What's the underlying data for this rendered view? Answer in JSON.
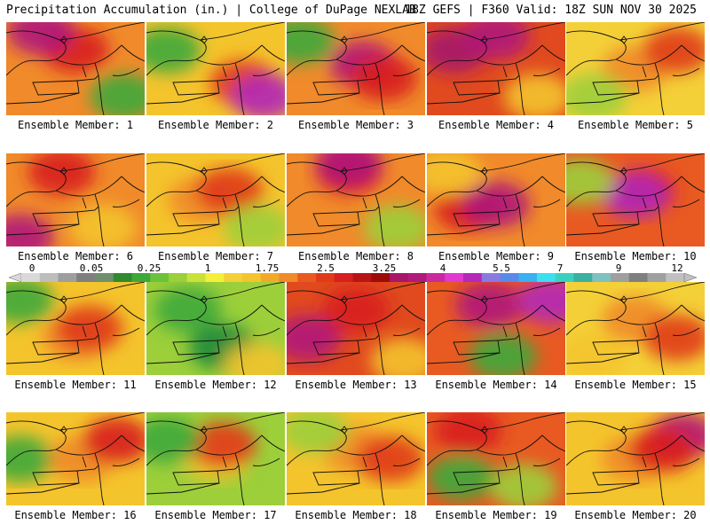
{
  "header": {
    "title": "Precipitation Accumulation (in.) | College of DuPage NEXLAB",
    "run_info": "18Z GEFS | F360 Valid: 18Z SUN NOV 30 2025"
  },
  "panels": [
    {
      "label": "Ensemble Member: 1",
      "base": "#f08a2a",
      "blobs": [
        [
          "#d81e1e",
          0.5,
          0.3
        ],
        [
          "#3ea83a",
          0.85,
          0.8
        ],
        [
          "#b01a7a",
          0.25,
          0.1
        ]
      ]
    },
    {
      "label": "Ensemble Member: 2",
      "base": "#f4c42c",
      "blobs": [
        [
          "#3ea83a",
          0.15,
          0.3
        ],
        [
          "#e03a1a",
          0.7,
          0.65
        ],
        [
          "#b32ab8",
          0.85,
          0.8
        ]
      ]
    },
    {
      "label": "Ensemble Member: 3",
      "base": "#f08a2a",
      "blobs": [
        [
          "#3ea83a",
          0.1,
          0.2
        ],
        [
          "#b01a7a",
          0.55,
          0.45
        ],
        [
          "#d81e1e",
          0.7,
          0.6
        ]
      ]
    },
    {
      "label": "Ensemble Member: 4",
      "base": "#e04a1e",
      "blobs": [
        [
          "#a6166a",
          0.2,
          0.3
        ],
        [
          "#b01a7a",
          0.5,
          0.15
        ],
        [
          "#f4c42c",
          0.8,
          0.8
        ]
      ]
    },
    {
      "label": "Ensemble Member: 5",
      "base": "#f4d038",
      "blobs": [
        [
          "#f08a2a",
          0.5,
          0.5
        ],
        [
          "#e03a1a",
          0.8,
          0.3
        ],
        [
          "#9ccf3a",
          0.2,
          0.8
        ]
      ]
    },
    {
      "label": "Ensemble Member: 6",
      "base": "#f08a2a",
      "blobs": [
        [
          "#d81e1e",
          0.4,
          0.2
        ],
        [
          "#b01a7a",
          0.1,
          0.9
        ],
        [
          "#f4c42c",
          0.7,
          0.8
        ]
      ]
    },
    {
      "label": "Ensemble Member: 7",
      "base": "#f4c42c",
      "blobs": [
        [
          "#f08a2a",
          0.4,
          0.5
        ],
        [
          "#e03a1a",
          0.6,
          0.4
        ],
        [
          "#9ccf3a",
          0.8,
          0.8
        ]
      ]
    },
    {
      "label": "Ensemble Member: 8",
      "base": "#f08a2a",
      "blobs": [
        [
          "#d81e1e",
          0.45,
          0.2
        ],
        [
          "#b01a7a",
          0.45,
          0.1
        ],
        [
          "#9ccf3a",
          0.8,
          0.8
        ]
      ]
    },
    {
      "label": "Ensemble Member: 9",
      "base": "#f08a2a",
      "blobs": [
        [
          "#d81e1e",
          0.3,
          0.6
        ],
        [
          "#b01a7a",
          0.5,
          0.55
        ],
        [
          "#f4c42c",
          0.15,
          0.2
        ]
      ]
    },
    {
      "label": "Ensemble Member: 10",
      "base": "#e85a22",
      "blobs": [
        [
          "#d81e1e",
          0.55,
          0.4
        ],
        [
          "#b32ab8",
          0.5,
          0.45
        ],
        [
          "#9ccf3a",
          0.1,
          0.3
        ]
      ]
    },
    {
      "label": "Ensemble Member: 11",
      "base": "#f4c42c",
      "blobs": [
        [
          "#3ea83a",
          0.1,
          0.2
        ],
        [
          "#f08a2a",
          0.5,
          0.6
        ],
        [
          "#e03a1a",
          0.6,
          0.5
        ]
      ]
    },
    {
      "label": "Ensemble Member: 12",
      "base": "#9ccf3a",
      "blobs": [
        [
          "#3ea83a",
          0.3,
          0.3
        ],
        [
          "#1f8a3a",
          0.55,
          0.7
        ],
        [
          "#f4c42c",
          0.8,
          0.9
        ]
      ]
    },
    {
      "label": "Ensemble Member: 13",
      "base": "#e04a1e",
      "blobs": [
        [
          "#b01a7a",
          0.15,
          0.6
        ],
        [
          "#d81e1e",
          0.5,
          0.3
        ],
        [
          "#f4c42c",
          0.85,
          0.85
        ]
      ]
    },
    {
      "label": "Ensemble Member: 14",
      "base": "#e85a22",
      "blobs": [
        [
          "#b01a7a",
          0.45,
          0.25
        ],
        [
          "#b32ab8",
          0.9,
          0.2
        ],
        [
          "#3ea83a",
          0.55,
          0.8
        ]
      ]
    },
    {
      "label": "Ensemble Member: 15",
      "base": "#f4d038",
      "blobs": [
        [
          "#f08a2a",
          0.5,
          0.4
        ],
        [
          "#e03a1a",
          0.8,
          0.6
        ],
        [
          "#f4c42c",
          0.2,
          0.8
        ]
      ]
    },
    {
      "label": "Ensemble Member: 16",
      "base": "#f4c42c",
      "blobs": [
        [
          "#3ea83a",
          0.1,
          0.5
        ],
        [
          "#f08a2a",
          0.55,
          0.5
        ],
        [
          "#d81e1e",
          0.8,
          0.3
        ]
      ]
    },
    {
      "label": "Ensemble Member: 17",
      "base": "#9ccf3a",
      "blobs": [
        [
          "#f4c42c",
          0.5,
          0.5
        ],
        [
          "#e03a1a",
          0.55,
          0.35
        ],
        [
          "#3ea83a",
          0.15,
          0.3
        ]
      ]
    },
    {
      "label": "Ensemble Member: 18",
      "base": "#f4c42c",
      "blobs": [
        [
          "#f08a2a",
          0.5,
          0.4
        ],
        [
          "#e03a1a",
          0.75,
          0.5
        ],
        [
          "#9ccf3a",
          0.2,
          0.2
        ]
      ]
    },
    {
      "label": "Ensemble Member: 19",
      "base": "#e85a22",
      "blobs": [
        [
          "#d81e1e",
          0.3,
          0.2
        ],
        [
          "#3ea83a",
          0.25,
          0.7
        ],
        [
          "#9ccf3a",
          0.7,
          0.8
        ]
      ]
    },
    {
      "label": "Ensemble Member: 20",
      "base": "#f4c42c",
      "blobs": [
        [
          "#f08a2a",
          0.5,
          0.5
        ],
        [
          "#b01a7a",
          0.85,
          0.25
        ],
        [
          "#d81e1e",
          0.7,
          0.4
        ]
      ]
    }
  ],
  "color_scale": {
    "tick_labels": [
      "0",
      "0.05",
      "0.25",
      "1",
      "1.75",
      "2.5",
      "3.25",
      "4",
      "5.5",
      "7",
      "9",
      "12"
    ],
    "colors": [
      "#d9d9d9",
      "#bdbdbd",
      "#9e9e9e",
      "#7f7f7f",
      "#6f8f6f",
      "#2e8b2e",
      "#3ea83a",
      "#6cc23a",
      "#9ccf3a",
      "#c9e23a",
      "#f4f03a",
      "#f4d038",
      "#f4c42c",
      "#f4a82a",
      "#f08a2a",
      "#e85a22",
      "#e03a1a",
      "#d81e1e",
      "#b81414",
      "#9c0a0a",
      "#a6166a",
      "#b01a7a",
      "#c92aa0",
      "#e03ad0",
      "#b32ab8",
      "#8a7ae0",
      "#5a8ae8",
      "#3ab0f0",
      "#3ae0f0",
      "#3ad0c0",
      "#3ab0a0",
      "#7fc0c0",
      "#9ea0a0",
      "#7f7f7f",
      "#a0a0a0",
      "#c0c0c0"
    ]
  }
}
